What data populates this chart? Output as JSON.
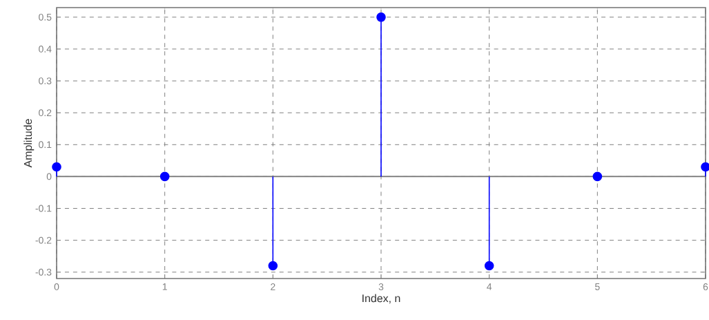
{
  "chart_data": {
    "type": "lollipop",
    "xlabel": "Index, n",
    "ylabel": "Amplitude",
    "x": [
      0,
      1,
      2,
      3,
      4,
      5,
      6
    ],
    "values": [
      0.03,
      0,
      -0.28,
      0.5,
      -0.28,
      0,
      0.03
    ],
    "color": "#0000ff",
    "xlim": [
      0,
      6
    ],
    "ylim": [
      -0.32,
      0.53
    ],
    "xticks": [
      0,
      1,
      2,
      3,
      4,
      5,
      6
    ],
    "yticks": [
      -0.3,
      -0.2,
      -0.1,
      0,
      0.1,
      0.2,
      0.3,
      0.4,
      0.5
    ],
    "grid": true,
    "marker": "circle",
    "line_style": "solid"
  }
}
